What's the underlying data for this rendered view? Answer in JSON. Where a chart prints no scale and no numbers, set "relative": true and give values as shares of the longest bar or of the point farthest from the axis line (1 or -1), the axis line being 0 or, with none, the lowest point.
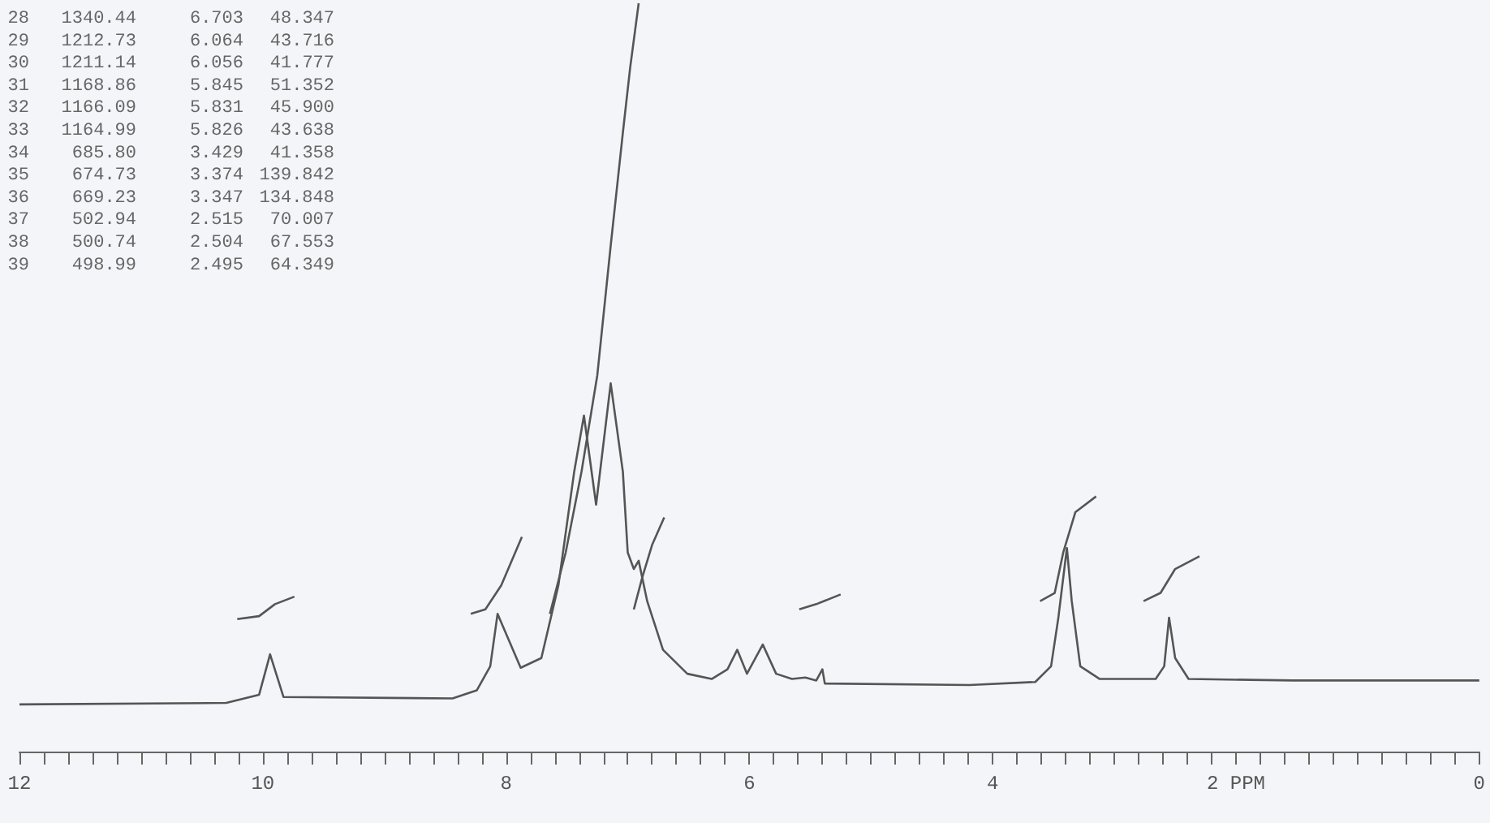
{
  "chart_data": {
    "type": "line",
    "relative": true,
    "xlim": [
      12,
      0
    ],
    "xticks": [
      12,
      {
        "value": 11.8,
        "label": null
      },
      {
        "value": 11.6,
        "label": null
      },
      {
        "value": 11.4,
        "label": null
      },
      {
        "value": 11.2,
        "label": null
      },
      {
        "value": 11,
        "label": null
      },
      {
        "value": 10.8,
        "label": null
      },
      {
        "value": 10.6,
        "label": null
      },
      {
        "value": 10.4,
        "label": null
      },
      {
        "value": 10.2,
        "label": null
      },
      10,
      {
        "value": 9.8,
        "label": null
      },
      {
        "value": 9.6,
        "label": null
      },
      {
        "value": 9.4,
        "label": null
      },
      {
        "value": 9.2,
        "label": null
      },
      {
        "value": 9,
        "label": null
      },
      {
        "value": 8.8,
        "label": null
      },
      {
        "value": 8.6,
        "label": null
      },
      {
        "value": 8.4,
        "label": null
      },
      {
        "value": 8.2,
        "label": null
      },
      8,
      {
        "value": 7.8,
        "label": null
      },
      {
        "value": 7.6,
        "label": null
      },
      {
        "value": 7.4,
        "label": null
      },
      {
        "value": 7.2,
        "label": null
      },
      {
        "value": 7,
        "label": null
      },
      {
        "value": 6.8,
        "label": null
      },
      {
        "value": 6.6,
        "label": null
      },
      {
        "value": 6.4,
        "label": null
      },
      {
        "value": 6.2,
        "label": null
      },
      6,
      {
        "value": 5.8,
        "label": null
      },
      {
        "value": 5.6,
        "label": null
      },
      {
        "value": 5.4,
        "label": null
      },
      {
        "value": 5.2,
        "label": null
      },
      {
        "value": 5,
        "label": null
      },
      {
        "value": 4.8,
        "label": null
      },
      {
        "value": 4.6,
        "label": null
      },
      {
        "value": 4.4,
        "label": null
      },
      {
        "value": 4.2,
        "label": null
      },
      4,
      {
        "value": 3.8,
        "label": null
      },
      {
        "value": 3.6,
        "label": null
      },
      {
        "value": 3.4,
        "label": null
      },
      {
        "value": 3.2,
        "label": null
      },
      {
        "value": 3,
        "label": null
      },
      {
        "value": 2.8,
        "label": null
      },
      {
        "value": 2.6,
        "label": null
      },
      {
        "value": 2.4,
        "label": null
      },
      {
        "value": 2.2,
        "label": null
      },
      {
        "value": 2,
        "label": "2 PPM"
      },
      {
        "value": 1.8,
        "label": null
      },
      {
        "value": 1.6,
        "label": null
      },
      {
        "value": 1.4,
        "label": null
      },
      {
        "value": 1.2,
        "label": null
      },
      {
        "value": 1,
        "label": null
      },
      {
        "value": 0.8,
        "label": null
      },
      {
        "value": 0.6,
        "label": null
      },
      {
        "value": 0.4,
        "label": null
      },
      {
        "value": 0.2,
        "label": null
      },
      0
    ],
    "grid": false,
    "marker": "none",
    "line_style": "solid",
    "series": [
      {
        "color": "#555555",
        "x": [
          12.0,
          10.3,
          10.03,
          9.94,
          9.83,
          8.44,
          8.24,
          8.13,
          8.07,
          7.88,
          7.71,
          7.57,
          7.44,
          7.36,
          7.26,
          7.14,
          7.04,
          7.0,
          6.95,
          6.91,
          6.84,
          6.71,
          6.51,
          6.31,
          6.18,
          6.1,
          6.02,
          5.89,
          5.78,
          5.65,
          5.54,
          5.45,
          5.4,
          5.38,
          4.19,
          3.65,
          3.52,
          3.46,
          3.39,
          3.35,
          3.28,
          3.12,
          2.66,
          2.59,
          2.55,
          2.5,
          2.39,
          1.53,
          0
        ],
        "values": [
          0.063,
          0.065,
          0.076,
          0.13,
          0.073,
          0.071,
          0.082,
          0.114,
          0.184,
          0.112,
          0.125,
          0.222,
          0.374,
          0.449,
          0.33,
          0.492,
          0.374,
          0.266,
          0.244,
          0.255,
          0.201,
          0.136,
          0.104,
          0.097,
          0.11,
          0.136,
          0.104,
          0.143,
          0.104,
          0.097,
          0.099,
          0.095,
          0.11,
          0.091,
          0.089,
          0.093,
          0.114,
          0.179,
          0.272,
          0.201,
          0.114,
          0.097,
          0.097,
          0.114,
          0.179,
          0.125,
          0.097,
          0.095,
          0.095
        ]
      },
      {
        "color": "#555555",
        "x": [
          10.21,
          10.03,
          9.9,
          9.74,
          9.7,
          8.29,
          8.17,
          8.04,
          7.87,
          7.8,
          7.64,
          7.51,
          7.38,
          7.25,
          7.14,
          7.04,
          6.98,
          6.91,
          6.93,
          6.95,
          6.88,
          6.8,
          6.7,
          6.6,
          5.59,
          5.45,
          5.25,
          5.2,
          3.61,
          3.49,
          3.42,
          3.32,
          3.15,
          3.1,
          2.76,
          2.62,
          2.5,
          2.3
        ],
        "values": [
          0.177,
          0.181,
          0.197,
          0.207,
          null,
          0.184,
          0.19,
          0.222,
          0.287,
          null,
          0.184,
          0.266,
          0.374,
          0.503,
          0.676,
          0.827,
          0.914,
          1,
          null,
          0.19,
          0.233,
          0.276,
          0.313,
          null,
          0.19,
          0.197,
          0.21,
          null,
          0.201,
          0.212,
          0.266,
          0.32,
          0.341,
          null,
          0.201,
          0.212,
          0.244,
          0.261
        ]
      }
    ],
    "annotations": [
      "28 1340.44 6.703 48.347",
      "29 1212.73 6.064 43.716",
      "30 1211.14 6.056 41.777",
      "31 1168.86 5.845 51.352",
      "32 1166.09 5.831 45.900",
      "33 1164.99 5.826 43.638",
      "34 685.80 3.429 41.358",
      "35 674.73 3.374 139.842",
      "36 669.23 3.347 134.848",
      "37 502.94 2.515 70.007",
      "38 500.74 2.504 67.553",
      "39 498.99 2.495 64.349"
    ]
  }
}
